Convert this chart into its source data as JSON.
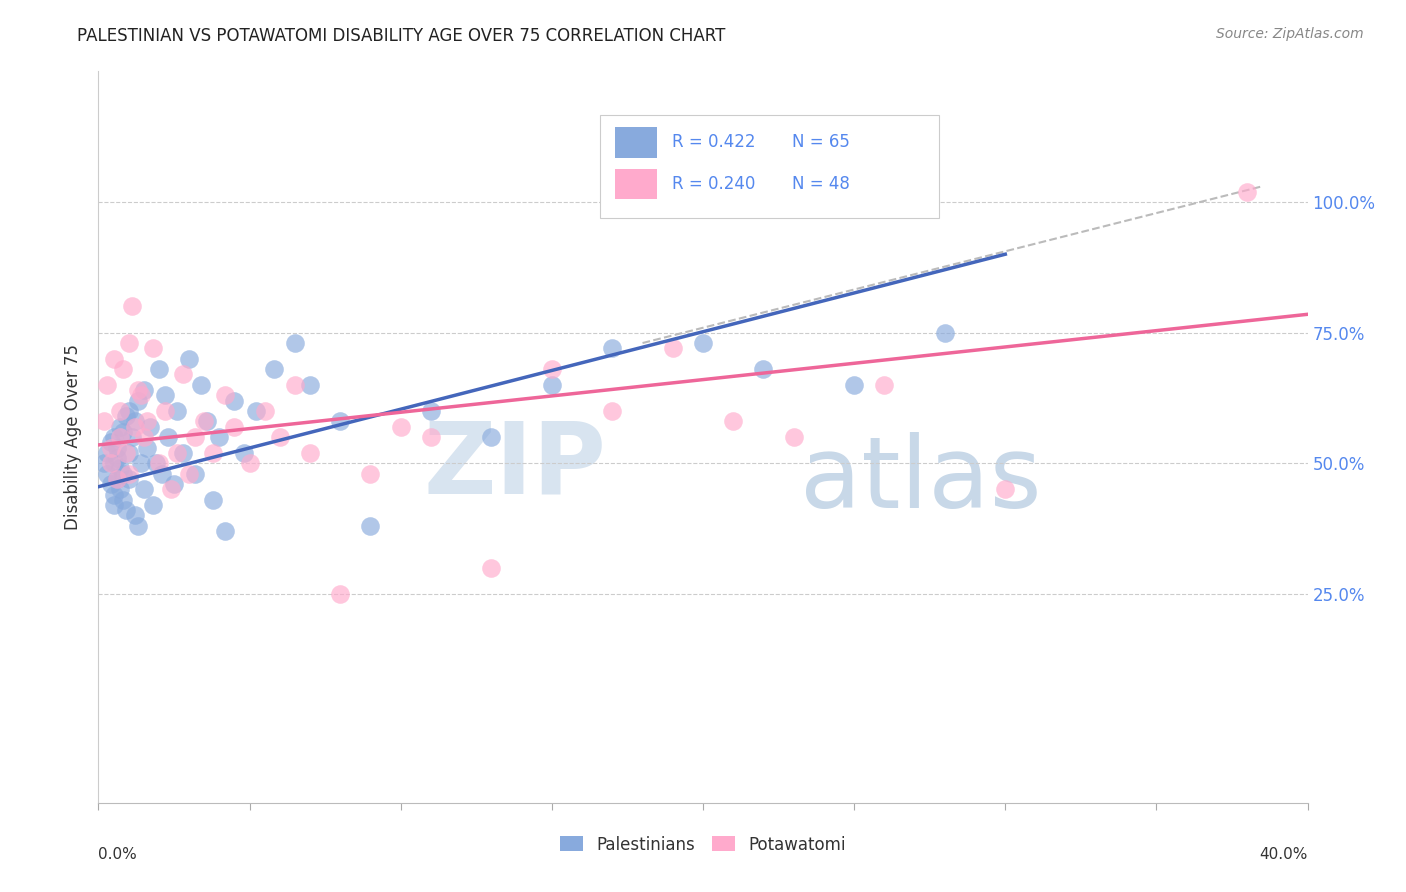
{
  "title": "PALESTINIAN VS POTAWATOMI DISABILITY AGE OVER 75 CORRELATION CHART",
  "source": "Source: ZipAtlas.com",
  "ylabel": "Disability Age Over 75",
  "xlim": [
    0.0,
    0.4
  ],
  "ylim": [
    -0.15,
    1.25
  ],
  "ytick_vals": [
    0.25,
    0.5,
    0.75,
    1.0
  ],
  "ytick_labels": [
    "25.0%",
    "50.0%",
    "75.0%",
    "100.0%"
  ],
  "xtick_vals": [
    0.0,
    0.05,
    0.1,
    0.15,
    0.2,
    0.25,
    0.3,
    0.35,
    0.4
  ],
  "blue_color": "#88AADD",
  "pink_color": "#FFAACC",
  "blue_line_color": "#4466BB",
  "pink_line_color": "#EE6699",
  "blue_line_x": [
    0.0,
    0.3
  ],
  "blue_line_y": [
    0.455,
    0.9
  ],
  "pink_line_x": [
    0.0,
    0.4
  ],
  "pink_line_y": [
    0.535,
    0.785
  ],
  "dashed_line_x": [
    0.18,
    0.385
  ],
  "dashed_line_y": [
    0.73,
    1.03
  ],
  "palestinians_x": [
    0.002,
    0.003,
    0.003,
    0.004,
    0.004,
    0.005,
    0.005,
    0.005,
    0.005,
    0.006,
    0.006,
    0.006,
    0.007,
    0.007,
    0.007,
    0.008,
    0.008,
    0.008,
    0.009,
    0.009,
    0.01,
    0.01,
    0.01,
    0.011,
    0.012,
    0.012,
    0.013,
    0.013,
    0.014,
    0.015,
    0.015,
    0.016,
    0.017,
    0.018,
    0.019,
    0.02,
    0.021,
    0.022,
    0.023,
    0.025,
    0.026,
    0.028,
    0.03,
    0.032,
    0.034,
    0.036,
    0.038,
    0.04,
    0.042,
    0.045,
    0.048,
    0.052,
    0.058,
    0.065,
    0.07,
    0.08,
    0.09,
    0.11,
    0.13,
    0.15,
    0.17,
    0.2,
    0.22,
    0.25,
    0.28
  ],
  "palestinians_y": [
    0.5,
    0.52,
    0.48,
    0.46,
    0.54,
    0.44,
    0.5,
    0.42,
    0.55,
    0.47,
    0.51,
    0.53,
    0.49,
    0.45,
    0.57,
    0.43,
    0.48,
    0.56,
    0.41,
    0.59,
    0.52,
    0.47,
    0.6,
    0.55,
    0.4,
    0.58,
    0.38,
    0.62,
    0.5,
    0.45,
    0.64,
    0.53,
    0.57,
    0.42,
    0.5,
    0.68,
    0.48,
    0.63,
    0.55,
    0.46,
    0.6,
    0.52,
    0.7,
    0.48,
    0.65,
    0.58,
    0.43,
    0.55,
    0.37,
    0.62,
    0.52,
    0.6,
    0.68,
    0.73,
    0.65,
    0.58,
    0.38,
    0.6,
    0.55,
    0.65,
    0.72,
    0.73,
    0.68,
    0.65,
    0.75
  ],
  "potawatomi_x": [
    0.002,
    0.003,
    0.004,
    0.004,
    0.005,
    0.006,
    0.007,
    0.007,
    0.008,
    0.009,
    0.01,
    0.01,
    0.011,
    0.012,
    0.013,
    0.014,
    0.015,
    0.016,
    0.018,
    0.02,
    0.022,
    0.024,
    0.026,
    0.028,
    0.03,
    0.032,
    0.035,
    0.038,
    0.042,
    0.045,
    0.05,
    0.055,
    0.06,
    0.065,
    0.07,
    0.08,
    0.09,
    0.1,
    0.11,
    0.13,
    0.15,
    0.17,
    0.19,
    0.21,
    0.23,
    0.26,
    0.3,
    0.38
  ],
  "potawatomi_y": [
    0.58,
    0.65,
    0.5,
    0.53,
    0.7,
    0.47,
    0.6,
    0.55,
    0.68,
    0.52,
    0.73,
    0.48,
    0.8,
    0.57,
    0.64,
    0.63,
    0.55,
    0.58,
    0.72,
    0.5,
    0.6,
    0.45,
    0.52,
    0.67,
    0.48,
    0.55,
    0.58,
    0.52,
    0.63,
    0.57,
    0.5,
    0.6,
    0.55,
    0.65,
    0.52,
    0.25,
    0.48,
    0.57,
    0.55,
    0.3,
    0.68,
    0.6,
    0.72,
    0.58,
    0.55,
    0.65,
    0.45,
    1.02
  ]
}
